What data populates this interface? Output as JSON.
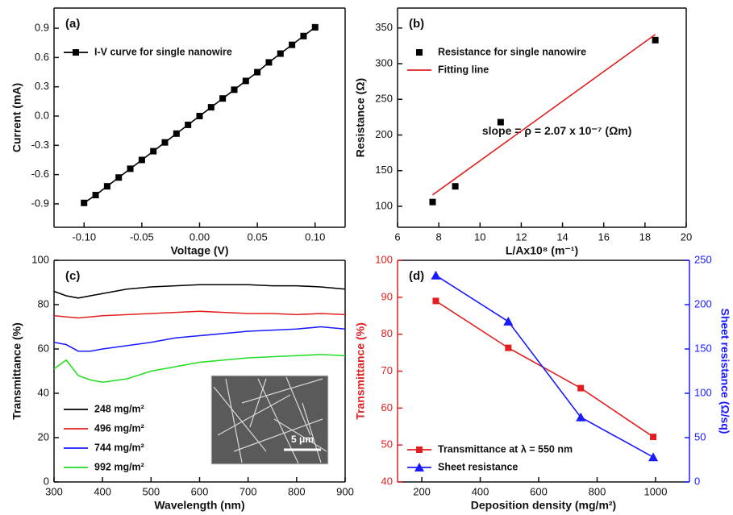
{
  "chart_data": [
    {
      "type": "line",
      "label": "(a)",
      "xlabel": "Voltage (V)",
      "ylabel": "Current (mA)",
      "xlim": [
        -0.126,
        0.126
      ],
      "ylim": [
        -1.14,
        1.107
      ],
      "xticks": [
        {
          "value": -0.1,
          "label": "-0.10"
        },
        -0.05,
        {
          "value": 0,
          "label": "0.00"
        },
        0.05,
        {
          "value": 0.1,
          "label": "0.10"
        }
      ],
      "yticks": [
        -0.9,
        -0.6,
        -0.3,
        {
          "value": 0,
          "label": "0.0"
        },
        0.3,
        0.6,
        0.9
      ],
      "legend": "upper left",
      "series": [
        {
          "name": "I-V curve for single nanowire",
          "color": "#000000",
          "marker": "square",
          "line": true,
          "x": [
            -0.1,
            -0.09,
            -0.08,
            -0.07,
            -0.06,
            -0.05,
            -0.04,
            -0.03,
            -0.02,
            -0.01,
            0,
            0.01,
            0.02,
            0.03,
            0.04,
            0.05,
            0.06,
            0.07,
            0.08,
            0.09,
            0.1
          ],
          "values": [
            -0.89,
            -0.81,
            -0.72,
            -0.63,
            -0.54,
            -0.45,
            -0.36,
            -0.27,
            -0.18,
            -0.09,
            0.0,
            0.09,
            0.18,
            0.27,
            0.36,
            0.45,
            0.55,
            0.64,
            0.73,
            0.82,
            0.91
          ]
        }
      ]
    },
    {
      "type": "scatter",
      "label": "(b)",
      "xlabel": "L/Ax10⁸ (m⁻¹)",
      "ylabel": "Resistance (Ω)",
      "xlim": [
        6,
        20
      ],
      "ylim": [
        70.6,
        378
      ],
      "xticks": [
        6,
        8,
        10,
        12,
        14,
        16,
        18,
        20
      ],
      "yticks": [
        100,
        150,
        200,
        250,
        300,
        350
      ],
      "legend": "upper left",
      "annotation": "slope = ρ = 2.07 x 10⁻⁷ (Ωm)",
      "series": [
        {
          "name": "Resistance for single nanowire",
          "color": "#000000",
          "marker": "square",
          "line": false,
          "x": [
            7.7,
            8.8,
            11.0,
            18.5
          ],
          "values": [
            106,
            128,
            218,
            333
          ]
        },
        {
          "name": "Fitting line",
          "color": "#e02020",
          "marker": null,
          "line": true,
          "x": [
            7.7,
            18.5
          ],
          "values": [
            116,
            341
          ]
        }
      ]
    },
    {
      "type": "line",
      "label": "(c)",
      "xlabel": "Wavelength (nm)",
      "ylabel": "Transmittance (%)",
      "xlim": [
        300,
        900
      ],
      "ylim": [
        0,
        100
      ],
      "xticks": [
        300,
        400,
        500,
        600,
        700,
        800,
        900
      ],
      "yticks": [
        0,
        20,
        40,
        60,
        80,
        100
      ],
      "legend": "lower left",
      "inset_label": "5 μm",
      "series": [
        {
          "name": "248 mg/m²",
          "color": "#000000",
          "marker": null,
          "line": true,
          "x": [
            300,
            325,
            350,
            375,
            400,
            450,
            500,
            550,
            600,
            650,
            700,
            750,
            800,
            850,
            900
          ],
          "values": [
            86,
            84,
            83,
            84,
            85,
            87,
            88,
            88.5,
            89,
            89,
            89,
            88.5,
            88.5,
            88,
            87
          ]
        },
        {
          "name": "496 mg/m²",
          "color": "#e02020",
          "marker": null,
          "line": true,
          "x": [
            300,
            325,
            350,
            375,
            400,
            450,
            500,
            550,
            600,
            650,
            700,
            750,
            800,
            850,
            900
          ],
          "values": [
            75,
            74.5,
            74,
            74.5,
            75,
            75.5,
            76,
            76.5,
            77,
            76.5,
            76,
            76,
            75.5,
            76,
            75.5
          ]
        },
        {
          "name": "744 mg/m²",
          "color": "#1a1aff",
          "marker": null,
          "line": true,
          "x": [
            300,
            325,
            350,
            375,
            400,
            450,
            500,
            550,
            600,
            650,
            700,
            750,
            800,
            850,
            900
          ],
          "values": [
            63,
            62,
            59,
            59,
            60,
            61.5,
            63,
            65,
            66,
            67,
            68,
            68.5,
            69,
            70,
            69
          ]
        },
        {
          "name": "992 mg/m²",
          "color": "#22dd22",
          "marker": null,
          "line": true,
          "x": [
            300,
            325,
            350,
            375,
            400,
            450,
            500,
            550,
            600,
            650,
            700,
            750,
            800,
            850,
            900
          ],
          "values": [
            51,
            55,
            48,
            46,
            45,
            46.5,
            50,
            52,
            54,
            55,
            56,
            56.5,
            57,
            57.5,
            57
          ]
        }
      ]
    },
    {
      "type": "line",
      "label": "(d)",
      "xlabel": "Deposition density (mg/m²)",
      "ylabel": "Transmittance (%)",
      "y2label": "Sheet resistance (Ω/sq)",
      "ylabel_color": "#e02020",
      "y2label_color": "#1a1aff",
      "xlim": [
        117,
        1116
      ],
      "ylim": [
        40,
        100
      ],
      "y2lim": [
        0,
        250
      ],
      "xticks": [
        200,
        400,
        600,
        800,
        1000
      ],
      "yticks": [
        40,
        50,
        60,
        70,
        80,
        90,
        100
      ],
      "y2ticks": [
        0,
        50,
        100,
        150,
        200,
        250
      ],
      "legend": "lower left",
      "series": [
        {
          "name": "Transmittance at λ = 550 nm",
          "color": "#e02020",
          "marker": "square",
          "line": true,
          "x": [
            248,
            496,
            744,
            992
          ],
          "values": [
            89,
            76.3,
            65.4,
            52.2
          ]
        },
        {
          "name": "Sheet resistance",
          "color": "#1a1aff",
          "marker": "triangle",
          "line": true,
          "axis": "y2",
          "x": [
            248,
            496,
            744,
            992
          ],
          "values": [
            233,
            181,
            73,
            28
          ]
        }
      ]
    }
  ]
}
